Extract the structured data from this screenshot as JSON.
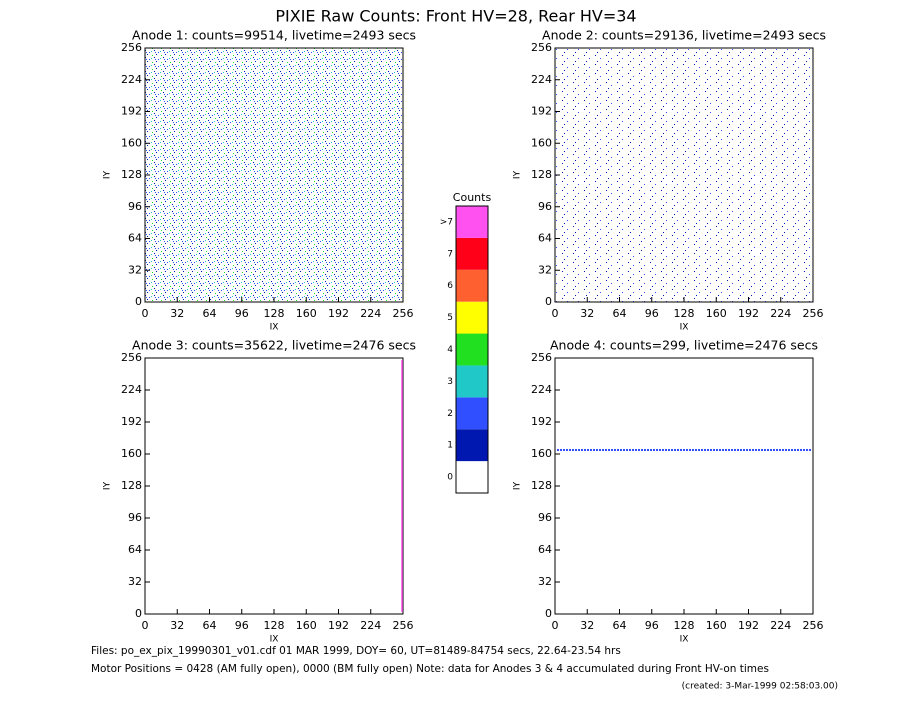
{
  "title": "PIXIE Raw Counts:  Front HV=28, Rear HV=34",
  "chart_data": [
    {
      "type": "heatmap",
      "title": "Anode 1: counts=99514, livetime=2493 secs",
      "xlabel": "IX",
      "ylabel": "IY",
      "xlim": [
        0,
        256
      ],
      "ylim": [
        0,
        256
      ],
      "xticks": [
        0,
        32,
        64,
        96,
        128,
        160,
        192,
        224,
        256
      ],
      "yticks": [
        0,
        32,
        64,
        96,
        128,
        160,
        192,
        224,
        256
      ]
    },
    {
      "type": "heatmap",
      "title": "Anode 2: counts=29136, livetime=2493 secs",
      "xlabel": "IX",
      "ylabel": "IY",
      "xlim": [
        0,
        256
      ],
      "ylim": [
        0,
        256
      ],
      "xticks": [
        0,
        32,
        64,
        96,
        128,
        160,
        192,
        224,
        256
      ],
      "yticks": [
        0,
        32,
        64,
        96,
        128,
        160,
        192,
        224,
        256
      ]
    },
    {
      "type": "heatmap",
      "title": "Anode 3: counts=35622, livetime=2476 secs",
      "xlabel": "IX",
      "ylabel": "IY",
      "xlim": [
        0,
        256
      ],
      "ylim": [
        0,
        256
      ],
      "xticks": [
        0,
        32,
        64,
        96,
        128,
        160,
        192,
        224,
        256
      ],
      "yticks": [
        0,
        32,
        64,
        96,
        128,
        160,
        192,
        224,
        256
      ]
    },
    {
      "type": "heatmap",
      "title": "Anode 4: counts=299, livetime=2476 secs",
      "xlabel": "IX",
      "ylabel": "IY",
      "xlim": [
        0,
        256
      ],
      "ylim": [
        0,
        256
      ],
      "xticks": [
        0,
        32,
        64,
        96,
        128,
        160,
        192,
        224,
        256
      ],
      "yticks": [
        0,
        32,
        64,
        96,
        128,
        160,
        192,
        224,
        256
      ]
    }
  ],
  "colorbar": {
    "title": "Counts",
    "labels": [
      "0",
      "1",
      "2",
      "3",
      "4",
      "5",
      "6",
      "7",
      ">7"
    ],
    "colors": [
      "#ffffff",
      "#0018b0",
      "#3050ff",
      "#20c8c8",
      "#20e020",
      "#ffff00",
      "#ff6030",
      "#ff0018",
      "#ff50f0"
    ]
  },
  "footer": {
    "files": "Files: po_ex_pix_19990301_v01.cdf    01 MAR 1999, DOY= 60, UT=81489-84754 secs, 22.64-23.54 hrs",
    "motor": "Motor Positions = 0428 (AM fully open), 0000 (BM fully open)    Note: data for Anodes 3 & 4 accumulated during Front HV-on times",
    "created": "(created:  3-Mar-1999 02:58:03.00)"
  }
}
